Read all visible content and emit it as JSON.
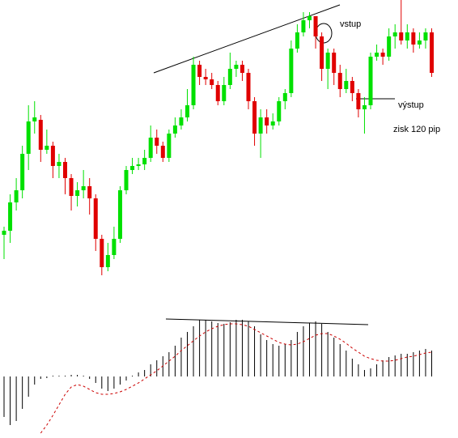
{
  "chart_data": [
    {
      "type": "candlestick",
      "open": [
        70,
        75,
        110,
        125,
        170,
        210,
        212,
        175,
        180,
        155,
        160,
        140,
        118,
        125,
        130,
        115,
        65,
        30,
        45,
        65,
        125,
        150,
        155,
        157,
        165,
        190,
        180,
        165,
        195,
        205,
        215,
        230,
        280,
        265,
        262,
        255,
        235,
        255,
        275,
        280,
        270,
        235,
        195,
        215,
        205,
        210,
        235,
        245,
        300,
        320,
        335,
        340,
        315,
        275,
        295,
        270,
        250,
        260,
        245,
        225,
        230,
        290,
        295,
        290,
        315,
        320,
        310,
        320,
        305,
        310,
        320
      ],
      "high": [
        80,
        120,
        140,
        180,
        230,
        235,
        218,
        200,
        185,
        170,
        165,
        145,
        135,
        150,
        140,
        120,
        70,
        60,
        80,
        130,
        155,
        165,
        165,
        175,
        205,
        200,
        185,
        200,
        215,
        225,
        250,
        290,
        285,
        275,
        270,
        260,
        265,
        295,
        285,
        285,
        275,
        240,
        225,
        225,
        220,
        240,
        250,
        310,
        330,
        345,
        345,
        340,
        320,
        300,
        300,
        280,
        275,
        265,
        250,
        240,
        295,
        305,
        300,
        325,
        330,
        360,
        330,
        325,
        320,
        325,
        325
      ],
      "low": [
        40,
        60,
        100,
        115,
        150,
        195,
        160,
        170,
        140,
        140,
        120,
        100,
        105,
        115,
        95,
        50,
        20,
        25,
        40,
        60,
        120,
        145,
        150,
        150,
        160,
        170,
        160,
        160,
        190,
        200,
        210,
        225,
        255,
        255,
        250,
        230,
        230,
        250,
        265,
        260,
        225,
        180,
        165,
        195,
        200,
        205,
        225,
        240,
        295,
        315,
        325,
        300,
        260,
        250,
        255,
        240,
        245,
        235,
        215,
        195,
        225,
        285,
        280,
        285,
        300,
        305,
        300,
        295,
        300,
        300,
        265
      ],
      "close": [
        75,
        110,
        125,
        170,
        210,
        215,
        175,
        180,
        155,
        160,
        140,
        118,
        125,
        130,
        115,
        65,
        30,
        45,
        65,
        125,
        150,
        155,
        157,
        165,
        190,
        180,
        165,
        195,
        205,
        215,
        230,
        280,
        265,
        262,
        255,
        235,
        255,
        275,
        280,
        270,
        235,
        195,
        215,
        205,
        210,
        235,
        245,
        300,
        320,
        335,
        340,
        315,
        275,
        295,
        270,
        250,
        260,
        245,
        225,
        230,
        290,
        295,
        290,
        315,
        320,
        310,
        320,
        305,
        310,
        320,
        270
      ],
      "up_color": "#00e000",
      "down_color": "#e00000",
      "ylim": [
        0,
        360
      ],
      "annotations": [
        "vstup",
        "výstup",
        "zisk 120 pip"
      ]
    },
    {
      "type": "bar",
      "values": [
        -50,
        -60,
        -55,
        -40,
        -25,
        -10,
        -3,
        -2,
        0,
        1,
        1,
        2,
        2,
        1,
        -3,
        -8,
        -15,
        -18,
        -15,
        -10,
        -5,
        0,
        5,
        8,
        15,
        20,
        25,
        30,
        38,
        48,
        55,
        62,
        70,
        70,
        68,
        66,
        65,
        67,
        70,
        70,
        68,
        62,
        52,
        45,
        40,
        38,
        40,
        45,
        55,
        62,
        66,
        68,
        65,
        55,
        48,
        40,
        32,
        22,
        15,
        8,
        10,
        15,
        20,
        24,
        26,
        28,
        28,
        30,
        32,
        34,
        32
      ],
      "color": "#000000",
      "signal": {
        "color": "#cc0000",
        "values": [
          null,
          null,
          null,
          null,
          null,
          null,
          -70,
          -60,
          -48,
          -35,
          -22,
          -13,
          -10,
          -12,
          -16,
          -20,
          -22,
          -22,
          -21,
          -19,
          -16,
          -12,
          -8,
          -3,
          2,
          7,
          13,
          19,
          25,
          32,
          38,
          44,
          50,
          55,
          59,
          62,
          64,
          65,
          65,
          64,
          62,
          58,
          54,
          50,
          46,
          42,
          40,
          39,
          40,
          43,
          47,
          51,
          53,
          53,
          50,
          46,
          41,
          35,
          30,
          25,
          22,
          20,
          19,
          19,
          20,
          22,
          24,
          25,
          27,
          29,
          30
        ]
      },
      "ylim": [
        -76,
        80
      ]
    }
  ]
}
